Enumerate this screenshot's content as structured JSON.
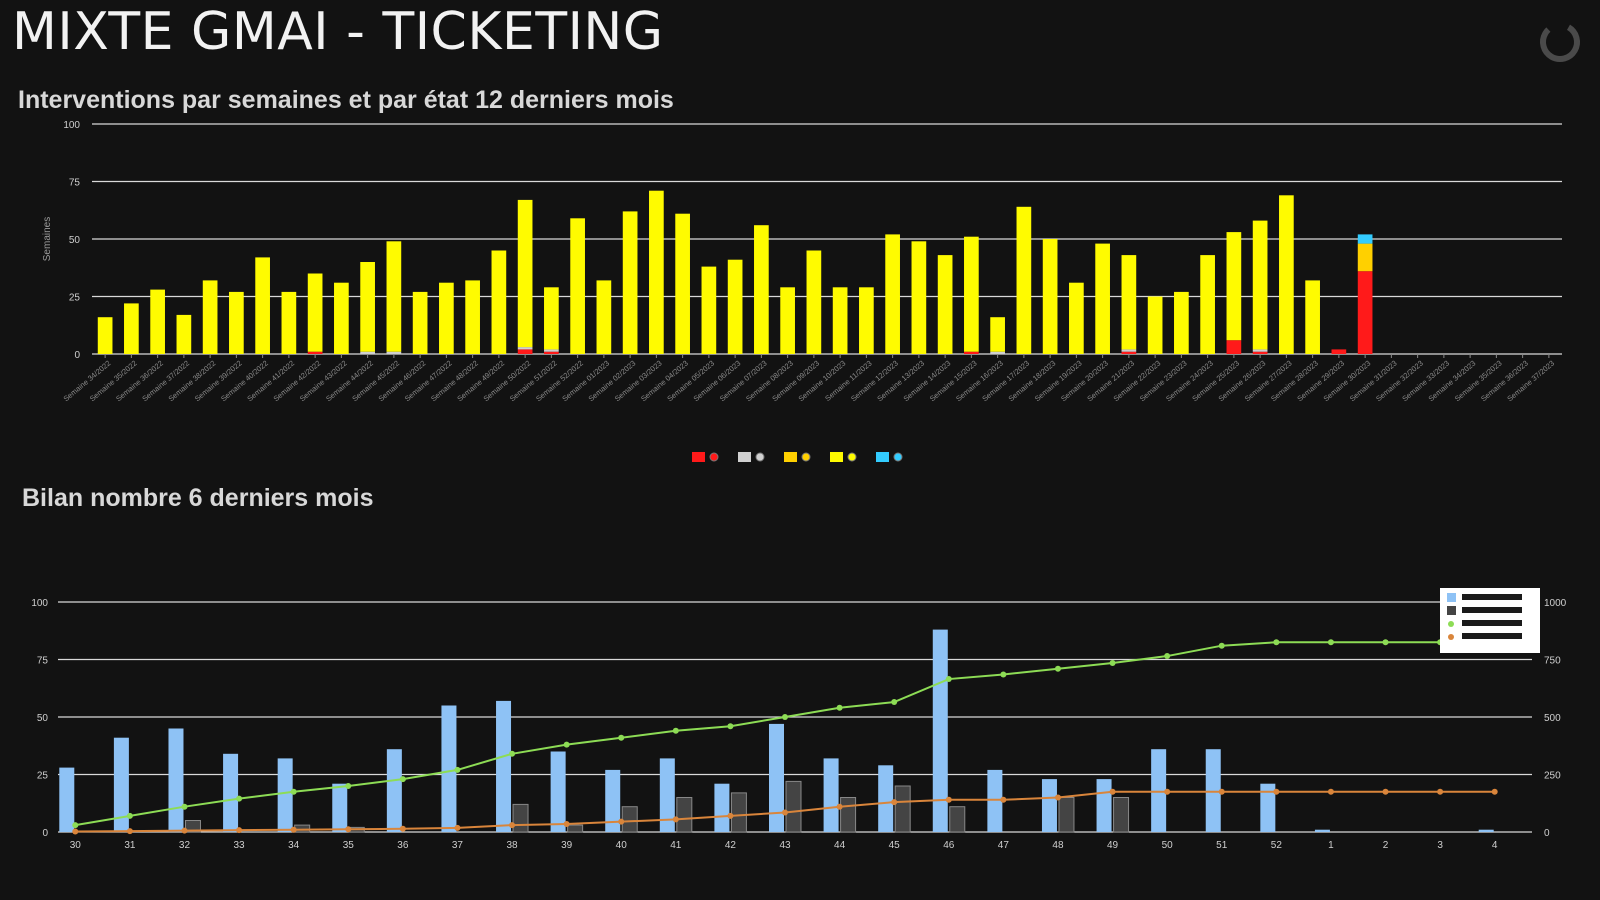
{
  "app_title": "MIXTE GMAI - TICKETING",
  "colors": {
    "background": "#121212",
    "grid": "#d9d9d9",
    "state_red": "#ff1a1a",
    "state_grey": "#d0d0d0",
    "state_orange": "#ffd000",
    "state_yellow": "#fffb00",
    "state_cyan": "#33ccff",
    "blue_bar": "#8ec2f5",
    "dark_bar": "#444444",
    "green_line": "#8ddc55",
    "orange_line": "#d9853b"
  },
  "chart_data": [
    {
      "type": "bar",
      "stacked": true,
      "title": "Interventions par semaines et par état 12 derniers mois",
      "ylabel": "Semaines",
      "ylim": [
        0,
        100
      ],
      "yticks": [
        0,
        25,
        50,
        75,
        100
      ],
      "grid": true,
      "legend_position": "bottom",
      "categories": [
        "Semaine 34/2022",
        "Semaine 35/2022",
        "Semaine 36/2022",
        "Semaine 37/2022",
        "Semaine 38/2022",
        "Semaine 39/2022",
        "Semaine 40/2022",
        "Semaine 41/2022",
        "Semaine 42/2022",
        "Semaine 43/2022",
        "Semaine 44/2022",
        "Semaine 45/2022",
        "Semaine 46/2022",
        "Semaine 47/2022",
        "Semaine 48/2022",
        "Semaine 49/2022",
        "Semaine 50/2022",
        "Semaine 51/2022",
        "Semaine 52/2022",
        "Semaine 01/2023",
        "Semaine 02/2023",
        "Semaine 03/2023",
        "Semaine 04/2023",
        "Semaine 05/2023",
        "Semaine 06/2023",
        "Semaine 07/2023",
        "Semaine 08/2023",
        "Semaine 09/2023",
        "Semaine 10/2023",
        "Semaine 11/2023",
        "Semaine 12/2023",
        "Semaine 13/2023",
        "Semaine 14/2023",
        "Semaine 15/2023",
        "Semaine 16/2023",
        "Semaine 17/2023",
        "Semaine 18/2023",
        "Semaine 19/2023",
        "Semaine 20/2023",
        "Semaine 21/2023",
        "Semaine 22/2023",
        "Semaine 23/2023",
        "Semaine 24/2023",
        "Semaine 25/2023",
        "Semaine 26/2023",
        "Semaine 27/2023",
        "Semaine 28/2023",
        "Semaine 29/2023",
        "Semaine 30/2023",
        "Semaine 31/2023",
        "Semaine 32/2023",
        "Semaine 33/2023",
        "Semaine 34/2023",
        "Semaine 35/2023",
        "Semaine 36/2023",
        "Semaine 37/2023"
      ],
      "series": [
        {
          "icon": "red-state-icon",
          "color": "#ff1a1a",
          "values": [
            0,
            0,
            0,
            0,
            0,
            0,
            0,
            0,
            1,
            0,
            0,
            0,
            0,
            0,
            0,
            0,
            2,
            1,
            0,
            0,
            0,
            0,
            0,
            0,
            0,
            0,
            0,
            0,
            0,
            0,
            0,
            0,
            0,
            1,
            0,
            0,
            0,
            0,
            0,
            1,
            0,
            0,
            0,
            6,
            1,
            0,
            0,
            2,
            36,
            0,
            0,
            0,
            0,
            0,
            0,
            0
          ]
        },
        {
          "icon": "grey-state-icon",
          "color": "#d0d0d0",
          "values": [
            0,
            0,
            0,
            0,
            0,
            0,
            0,
            0,
            0,
            0,
            1,
            1,
            0,
            0,
            0,
            0,
            1,
            1,
            0,
            0,
            0,
            0,
            0,
            0,
            0,
            0,
            0,
            0,
            0,
            0,
            0,
            0,
            0,
            0,
            1,
            0,
            0,
            0,
            0,
            1,
            0,
            0,
            0,
            0,
            1,
            0,
            0,
            0,
            0,
            0,
            0,
            0,
            0,
            0,
            0,
            0
          ]
        },
        {
          "icon": "orange-state-icon",
          "color": "#ffd000",
          "values": [
            0,
            0,
            0,
            0,
            0,
            0,
            0,
            0,
            0,
            0,
            0,
            0,
            0,
            0,
            0,
            0,
            0,
            0,
            0,
            0,
            0,
            0,
            0,
            0,
            0,
            0,
            0,
            0,
            0,
            0,
            0,
            0,
            0,
            0,
            0,
            0,
            0,
            0,
            0,
            0,
            0,
            0,
            0,
            0,
            0,
            0,
            0,
            0,
            12,
            0,
            0,
            0,
            0,
            0,
            0,
            0
          ]
        },
        {
          "icon": "yellow-state-icon",
          "color": "#fffb00",
          "values": [
            16,
            22,
            28,
            17,
            32,
            27,
            42,
            27,
            34,
            31,
            39,
            48,
            27,
            31,
            32,
            45,
            64,
            27,
            59,
            32,
            62,
            71,
            61,
            38,
            41,
            56,
            29,
            45,
            29,
            29,
            52,
            49,
            43,
            50,
            15,
            64,
            50,
            31,
            48,
            41,
            25,
            27,
            43,
            47,
            56,
            69,
            32,
            0,
            0,
            0,
            0,
            0,
            0,
            0,
            0,
            0
          ]
        },
        {
          "icon": "cyan-state-icon",
          "color": "#33ccff",
          "values": [
            0,
            0,
            0,
            0,
            0,
            0,
            0,
            0,
            0,
            0,
            0,
            0,
            0,
            0,
            0,
            0,
            0,
            0,
            0,
            0,
            0,
            0,
            0,
            0,
            0,
            0,
            0,
            0,
            0,
            0,
            0,
            0,
            0,
            0,
            0,
            0,
            0,
            0,
            0,
            0,
            0,
            0,
            0,
            0,
            0,
            0,
            0,
            0,
            4,
            0,
            0,
            0,
            0,
            0,
            0,
            0
          ]
        }
      ]
    },
    {
      "type": "bar",
      "title": "Bilan nombre 6 derniers mois",
      "ylim": [
        0,
        100
      ],
      "yticks": [
        0,
        25,
        50,
        75,
        100
      ],
      "y2lim": [
        0,
        1000
      ],
      "y2ticks": [
        0,
        250,
        500,
        750,
        1000
      ],
      "grid": true,
      "legend_position": "top-right",
      "categories": [
        "30",
        "31",
        "32",
        "33",
        "34",
        "35",
        "36",
        "37",
        "38",
        "39",
        "40",
        "41",
        "42",
        "43",
        "44",
        "45",
        "46",
        "47",
        "48",
        "49",
        "50",
        "51",
        "52",
        "1",
        "2",
        "3",
        "4"
      ],
      "series": [
        {
          "type": "bar",
          "axis": "left",
          "color": "#8ec2f5",
          "values": [
            28,
            41,
            45,
            34,
            32,
            21,
            36,
            55,
            57,
            35,
            27,
            32,
            21,
            47,
            32,
            29,
            88,
            27,
            23,
            23,
            36,
            36,
            21,
            1,
            0,
            0,
            1
          ]
        },
        {
          "type": "bar",
          "axis": "left",
          "color": "#444444",
          "values": [
            0,
            0,
            5,
            0,
            3,
            2,
            0,
            0,
            12,
            3,
            11,
            15,
            17,
            22,
            15,
            20,
            11,
            0,
            15,
            15,
            0,
            0,
            0,
            0,
            0,
            0,
            0
          ]
        },
        {
          "type": "line",
          "axis": "right",
          "color": "#8ddc55",
          "values": [
            30,
            70,
            110,
            145,
            175,
            200,
            230,
            270,
            340,
            380,
            410,
            440,
            460,
            500,
            540,
            565,
            665,
            685,
            710,
            735,
            765,
            810,
            825,
            825,
            825,
            825,
            null
          ]
        },
        {
          "type": "line",
          "axis": "right",
          "color": "#d9853b",
          "values": [
            2,
            4,
            6,
            8,
            10,
            12,
            14,
            18,
            30,
            35,
            45,
            55,
            70,
            85,
            110,
            130,
            140,
            140,
            150,
            175,
            175,
            175,
            175,
            175,
            175,
            175,
            175
          ]
        }
      ]
    }
  ]
}
